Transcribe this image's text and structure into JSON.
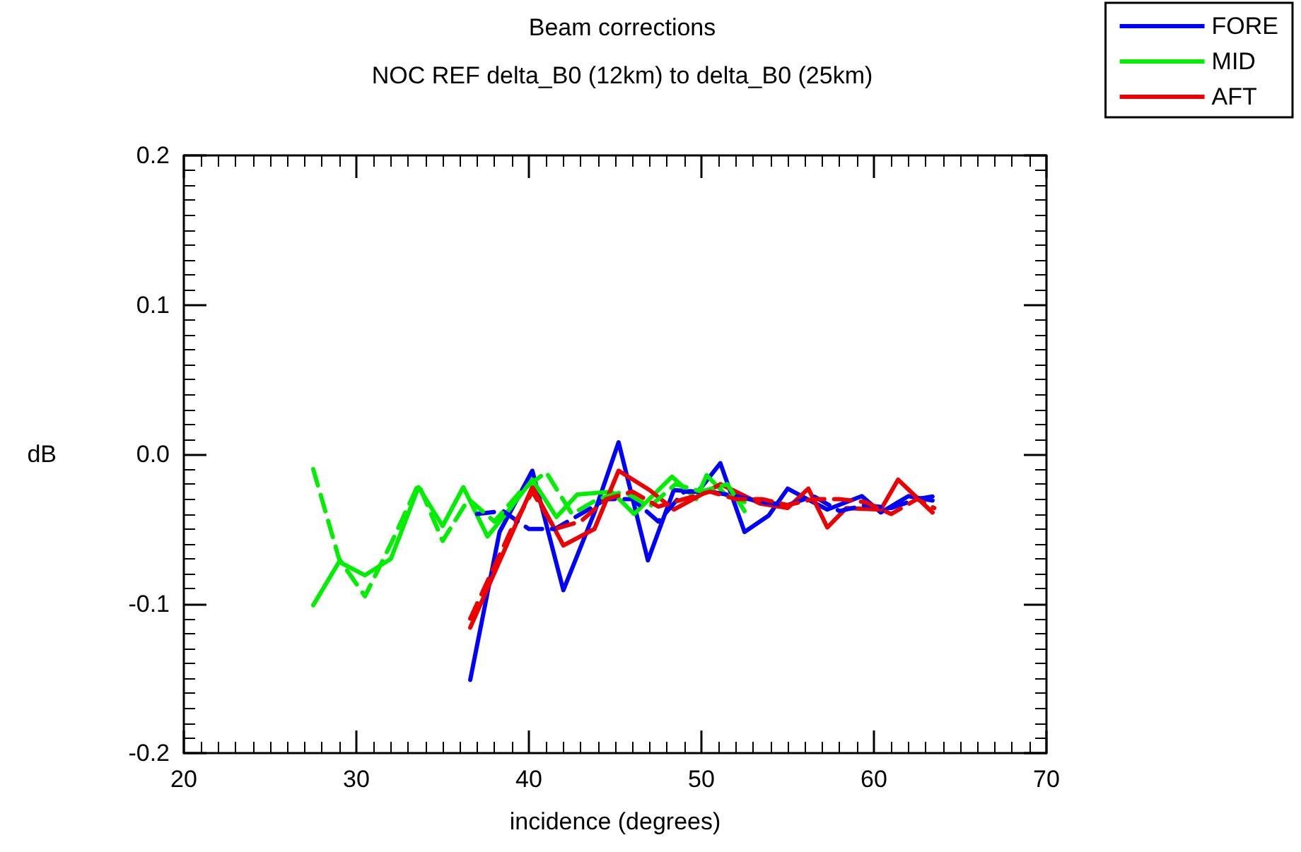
{
  "chart_data": {
    "type": "line",
    "title": "Beam corrections",
    "subtitle": "NOC REF delta_B0 (12km) to delta_B0 (25km)",
    "xlabel": "incidence (degrees)",
    "ylabel": "dB",
    "xlim": [
      20,
      70
    ],
    "xticks": [
      20,
      30,
      40,
      50,
      60,
      70
    ],
    "ylim": [
      -0.2,
      0.2
    ],
    "yticks": [
      {
        "value": -0.2,
        "label": "-0.2"
      },
      {
        "value": -0.1,
        "label": "-0.1"
      },
      {
        "value": 0,
        "label": "0.0"
      },
      {
        "value": 0.1,
        "label": "0.1"
      },
      {
        "value": 0.2,
        "label": "0.2"
      }
    ],
    "grid": false,
    "legend": "top right",
    "marker": "none",
    "series": [
      {
        "name": "FORE",
        "color": "#0000ff",
        "line_style": "solid",
        "x": [
          36.6,
          38.3,
          40.2,
          42.0,
          43.8,
          45.2,
          46.9,
          48.4,
          49.8,
          51.1,
          52.5,
          53.9,
          55.0,
          56.3,
          57.3,
          59.3,
          60.4,
          62.0,
          63.4
        ],
        "values": [
          -0.151,
          -0.052,
          -0.011,
          -0.091,
          -0.039,
          0.008,
          -0.071,
          -0.024,
          -0.025,
          -0.006,
          -0.052,
          -0.041,
          -0.023,
          -0.031,
          -0.037,
          -0.028,
          -0.039,
          -0.028,
          -0.031
        ]
      },
      {
        "name": "MID",
        "color": "#00ee00",
        "line_style": "solid",
        "x": [
          27.5,
          29.0,
          30.5,
          32.0,
          33.6,
          35.0,
          36.2,
          37.6,
          39.0,
          40.2,
          41.6,
          42.8,
          44.8,
          46.1,
          48.3,
          49.7,
          50.3,
          51.4,
          52.5
        ],
        "values": [
          -0.101,
          -0.072,
          -0.081,
          -0.07,
          -0.022,
          -0.048,
          -0.022,
          -0.055,
          -0.035,
          -0.017,
          -0.042,
          -0.027,
          -0.025,
          -0.04,
          -0.015,
          -0.03,
          -0.014,
          -0.027,
          -0.032
        ]
      },
      {
        "name": "AFT",
        "color": "#ee0000",
        "line_style": "solid",
        "x": [
          36.6,
          40.2,
          42.0,
          43.8,
          45.2,
          47.0,
          48.4,
          51.1,
          53.4,
          55.0,
          56.2,
          57.3,
          58.4,
          60.4,
          61.4,
          63.4
        ],
        "values": [
          -0.116,
          -0.022,
          -0.061,
          -0.05,
          -0.011,
          -0.024,
          -0.037,
          -0.02,
          -0.033,
          -0.036,
          -0.023,
          -0.049,
          -0.036,
          -0.037,
          -0.017,
          -0.039
        ]
      },
      {
        "color": "#0000ff",
        "line_style": "dashed",
        "x": [
          37.0,
          38.5,
          40.0,
          41.5,
          43.0,
          44.5,
          46.0,
          47.5,
          49.0,
          50.5,
          52.0,
          53.5,
          55.0,
          56.5,
          58.0,
          59.5,
          61.0,
          62.5,
          63.5
        ],
        "values": [
          -0.04,
          -0.038,
          -0.05,
          -0.05,
          -0.04,
          -0.03,
          -0.03,
          -0.045,
          -0.025,
          -0.025,
          -0.028,
          -0.032,
          -0.034,
          -0.028,
          -0.038,
          -0.034,
          -0.036,
          -0.03,
          -0.028
        ]
      },
      {
        "color": "#00ee00",
        "line_style": "dashed",
        "x": [
          27.5,
          29.0,
          30.5,
          32.0,
          33.6,
          35.0,
          36.5,
          38.0,
          39.5,
          41.0,
          42.5,
          44.0,
          45.5,
          47.0,
          48.5,
          50.0,
          51.5,
          52.5
        ],
        "values": [
          -0.01,
          -0.07,
          -0.095,
          -0.06,
          -0.02,
          -0.058,
          -0.03,
          -0.045,
          -0.025,
          -0.012,
          -0.04,
          -0.03,
          -0.025,
          -0.035,
          -0.02,
          -0.025,
          -0.02,
          -0.038
        ]
      },
      {
        "color": "#ee0000",
        "line_style": "dashed",
        "x": [
          36.6,
          38.0,
          39.0,
          40.2,
          41.5,
          43.0,
          44.5,
          46.0,
          47.5,
          49.0,
          50.5,
          52.0,
          53.5,
          55.0,
          56.5,
          58.0,
          59.5,
          61.0,
          62.5,
          63.5
        ],
        "values": [
          -0.11,
          -0.075,
          -0.05,
          -0.025,
          -0.05,
          -0.045,
          -0.03,
          -0.025,
          -0.035,
          -0.03,
          -0.025,
          -0.03,
          -0.03,
          -0.034,
          -0.03,
          -0.03,
          -0.032,
          -0.04,
          -0.03,
          -0.036
        ]
      }
    ]
  }
}
